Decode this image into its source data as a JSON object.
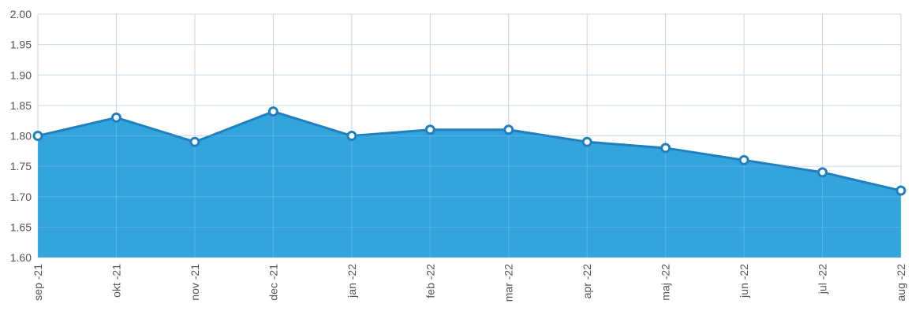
{
  "chart_data": {
    "type": "area",
    "categories": [
      "sep -21",
      "okt -21",
      "nov -21",
      "dec -21",
      "jan -22",
      "feb -22",
      "mar -22",
      "apr -22",
      "maj -22",
      "jun -22",
      "jul -22",
      "aug -22"
    ],
    "series": [
      {
        "values": [
          1.8,
          1.83,
          1.79,
          1.84,
          1.8,
          1.81,
          1.81,
          1.79,
          1.78,
          1.76,
          1.74,
          1.71
        ]
      }
    ],
    "y_ticks": [
      "2.00",
      "1.95",
      "1.90",
      "1.85",
      "1.80",
      "1.75",
      "1.70",
      "1.65",
      "1.60"
    ],
    "ylim": [
      1.6,
      2.0
    ],
    "grid": true,
    "title": "",
    "xlabel": "",
    "ylabel": "",
    "colors": {
      "fill": "#34a5dc",
      "line": "#1f7fbf",
      "grid": "#c5d7e6",
      "marker_fill": "#ffffff"
    }
  }
}
